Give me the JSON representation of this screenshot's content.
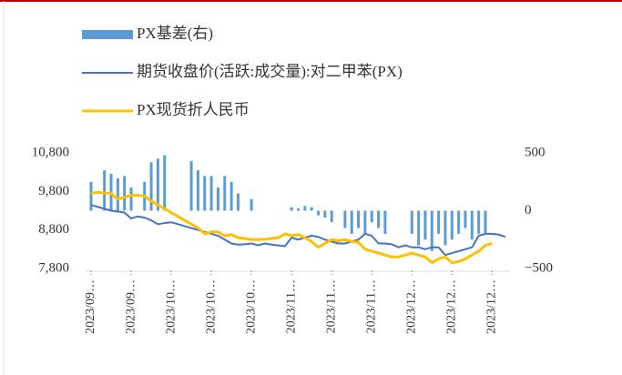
{
  "chart_data": {
    "type": "bar-line",
    "categories": [
      "2023/09…",
      null,
      null,
      null,
      null,
      null,
      "2023/09…",
      null,
      null,
      null,
      null,
      null,
      "2023/10…",
      null,
      null,
      null,
      null,
      null,
      "2023/10…",
      null,
      null,
      null,
      null,
      null,
      "2023/10…",
      null,
      null,
      null,
      null,
      null,
      "2023/11…",
      null,
      null,
      null,
      null,
      null,
      "2023/11…",
      null,
      null,
      null,
      null,
      null,
      "2023/11…",
      null,
      null,
      null,
      null,
      null,
      "2023/12…",
      null,
      null,
      null,
      null,
      null,
      "2023/12…",
      null,
      null,
      null,
      null,
      null,
      "2023/12…",
      null,
      null
    ],
    "series": [
      {
        "name": "PX基差(右)",
        "type": "bar",
        "axis": "y2",
        "color": "#5b9bd5",
        "values": [
          250,
          null,
          350,
          320,
          280,
          300,
          200,
          null,
          250,
          420,
          450,
          480,
          null,
          null,
          null,
          430,
          350,
          300,
          300,
          200,
          300,
          250,
          150,
          null,
          100,
          null,
          null,
          null,
          null,
          null,
          30,
          20,
          40,
          30,
          -40,
          -60,
          -100,
          null,
          -150,
          -200,
          -150,
          -200,
          -100,
          -150,
          -200,
          null,
          null,
          null,
          -200,
          -300,
          -250,
          -350,
          -200,
          -300,
          -250,
          -200,
          -150,
          -250,
          -200,
          -200,
          null,
          null,
          null
        ]
      },
      {
        "name": "期货收盘价(活跃:成交量):对二甲苯(PX)",
        "type": "line",
        "color": "#4472c4",
        "values": [
          9450,
          9400,
          9350,
          9300,
          9280,
          9250,
          9100,
          9150,
          9120,
          9050,
          8950,
          8980,
          9000,
          8950,
          8900,
          8850,
          8800,
          8750,
          8700,
          8650,
          8550,
          8450,
          8420,
          8430,
          8450,
          8400,
          8450,
          8420,
          8400,
          8380,
          8600,
          8550,
          8600,
          8650,
          8620,
          8550,
          8500,
          8450,
          8450,
          8500,
          8550,
          8700,
          8650,
          8450,
          8450,
          8430,
          8350,
          8400,
          8350,
          8350,
          8300,
          8350,
          8350,
          8150,
          8200,
          8250,
          8300,
          8350,
          8650,
          8700,
          8700,
          8680,
          8620
        ]
      },
      {
        "name": "PX现货折人民币",
        "type": "line",
        "color": "#ffc000",
        "values": [
          9750,
          9780,
          9760,
          9750,
          9600,
          9650,
          9700,
          9700,
          9680,
          9550,
          9450,
          9350,
          9250,
          9150,
          9050,
          8950,
          8850,
          8700,
          8750,
          8750,
          8650,
          8680,
          8600,
          8580,
          8550,
          8550,
          8560,
          8580,
          8600,
          8700,
          8650,
          8680,
          8600,
          8500,
          8350,
          8450,
          8550,
          8520,
          8550,
          8500,
          8480,
          8300,
          8250,
          8200,
          8150,
          8100,
          8100,
          8150,
          8200,
          8150,
          8100,
          7950,
          8050,
          8100,
          7950,
          7980,
          8050,
          8150,
          8250,
          8400,
          8450,
          null,
          null
        ]
      }
    ],
    "ylim": [
      7800,
      10800
    ],
    "yticks": [
      {
        "value": 7800,
        "label": "7,800"
      },
      {
        "value": 8800,
        "label": "8,800"
      },
      {
        "value": 9800,
        "label": "9,800"
      },
      {
        "value": 10800,
        "label": "10,800"
      }
    ],
    "y2lim": [
      -500,
      500
    ],
    "y2ticks": [
      {
        "value": -500,
        "label": "−500"
      },
      0,
      500
    ],
    "grid": false
  }
}
